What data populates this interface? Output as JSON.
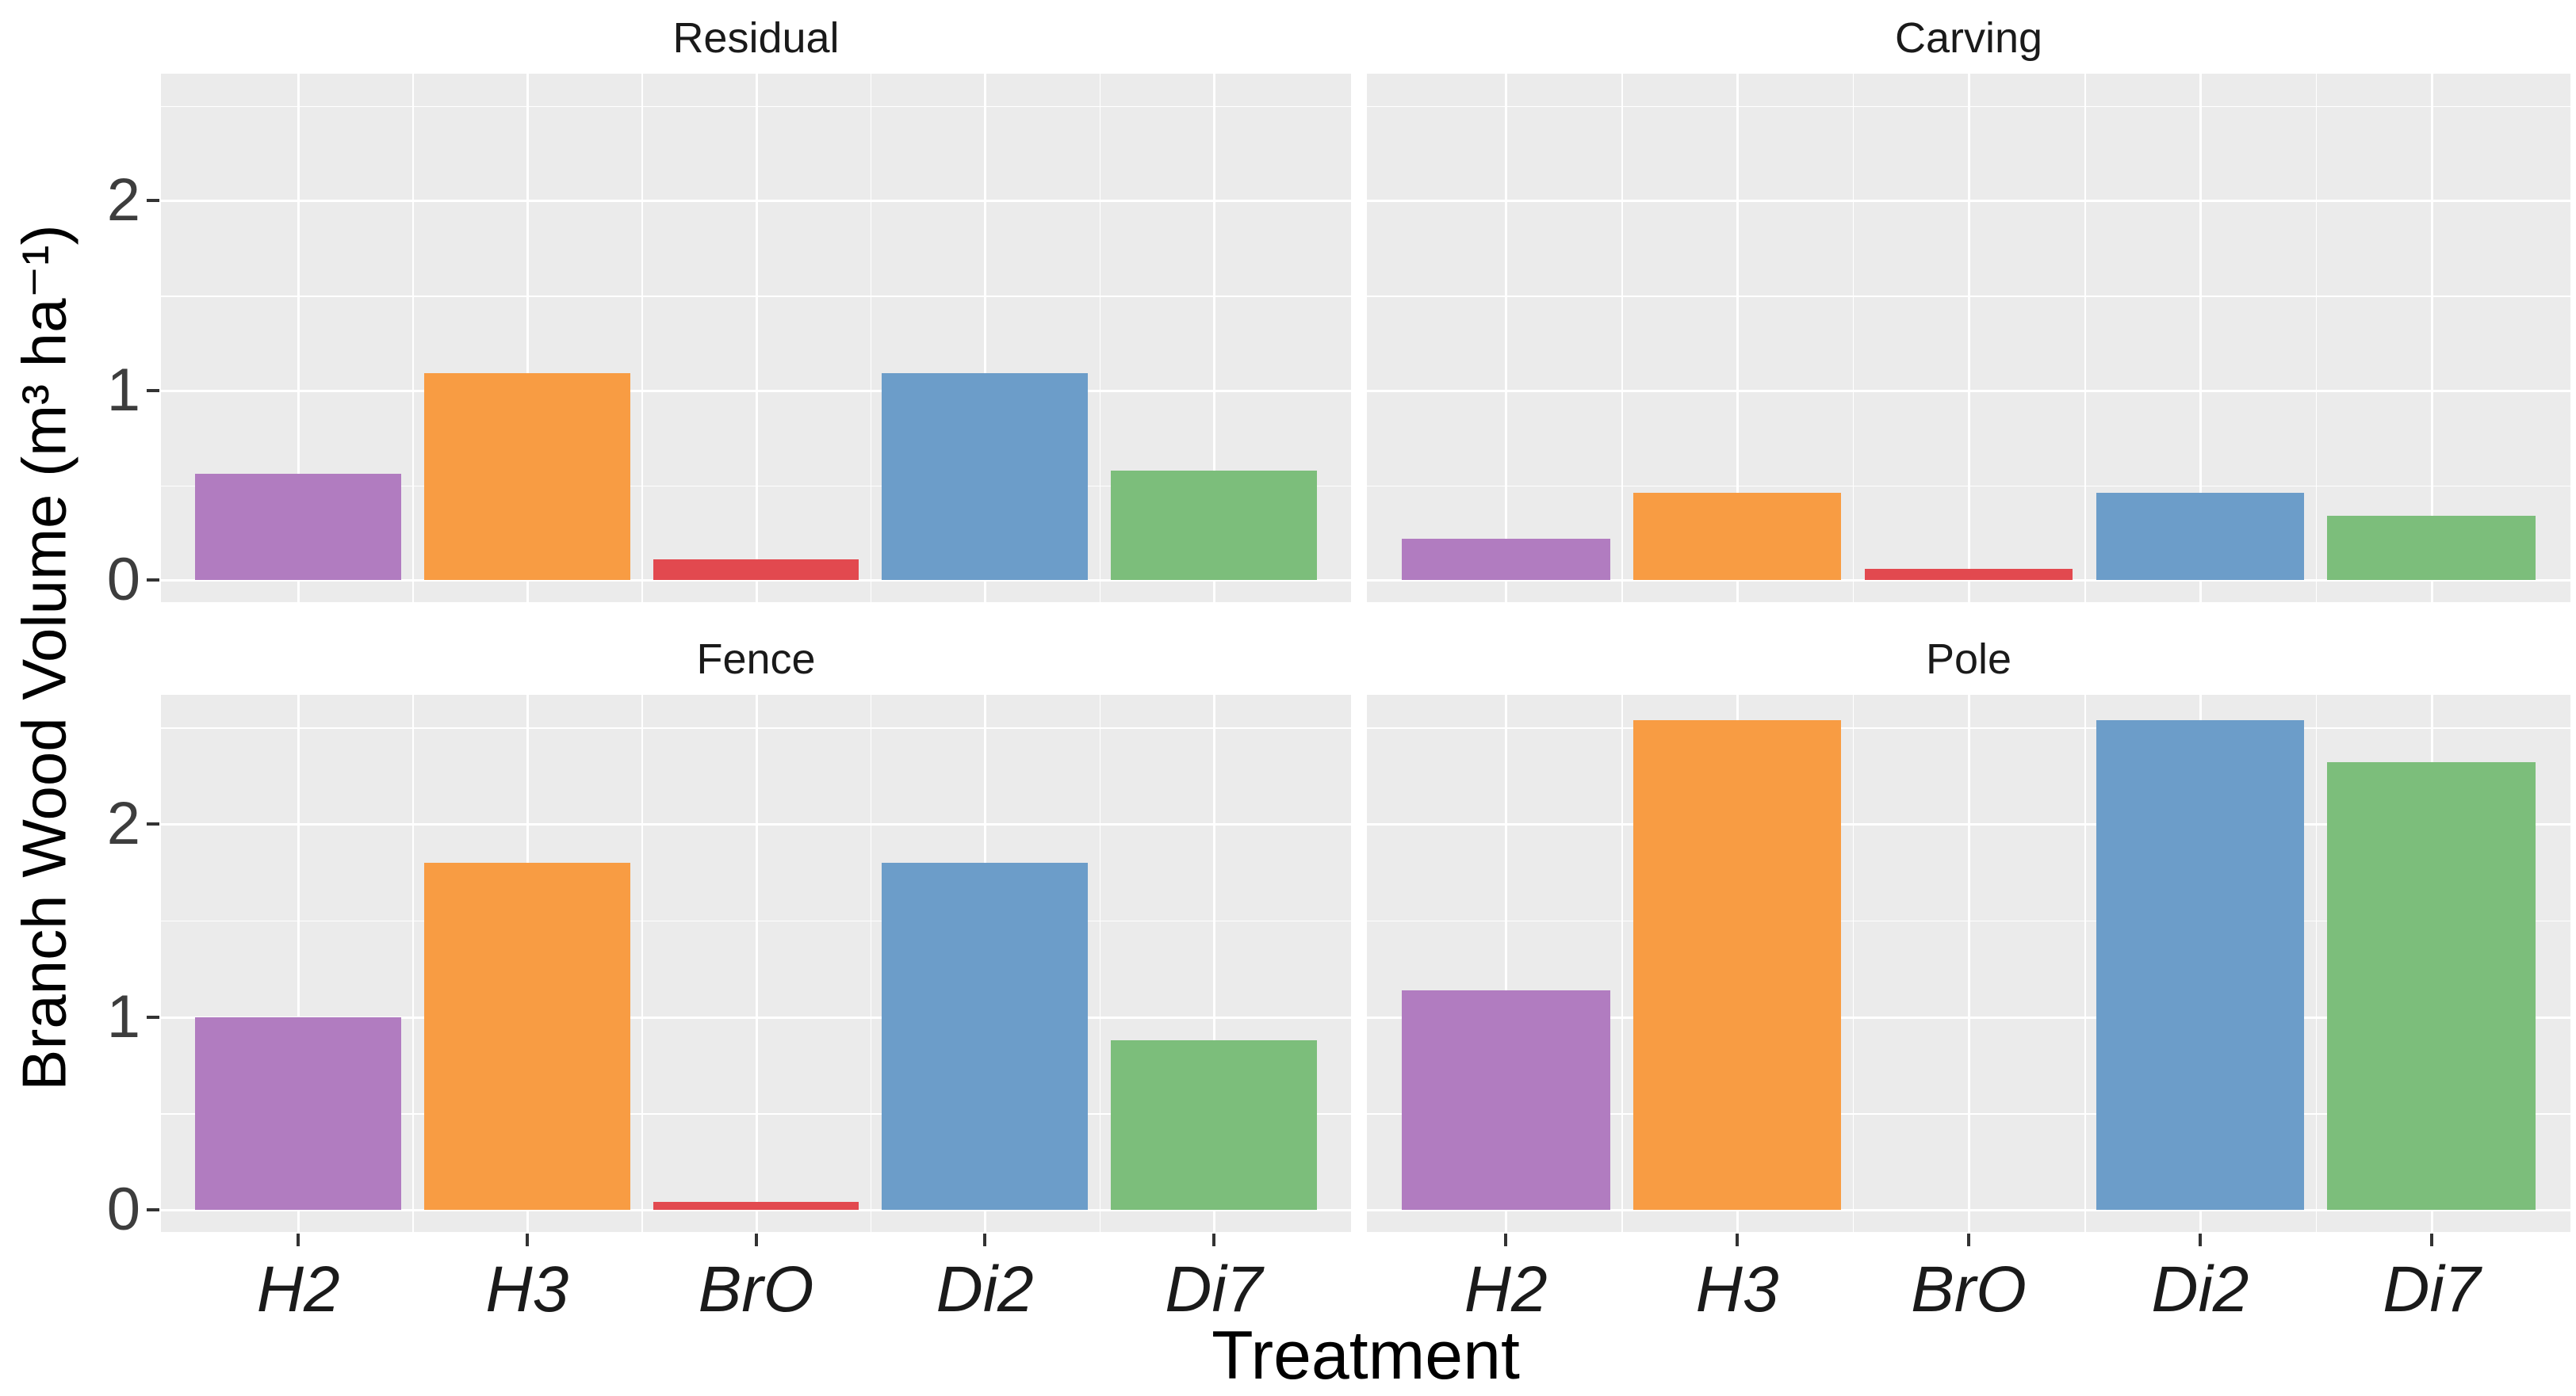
{
  "figure": {
    "y_axis_title": "Branch Wood Volume (m³ ha⁻¹)",
    "x_axis_title": "Treatment",
    "panel_background": "#EBEBEB",
    "gridline_color": "#FFFFFF",
    "text_color": "#1a1a1a"
  },
  "chart_data": {
    "type": "bar",
    "title": "",
    "xlabel": "Treatment",
    "ylabel": "Branch Wood Volume (m³ ha⁻¹)",
    "categories": [
      "H2",
      "H3",
      "BrO",
      "Di2",
      "Di7"
    ],
    "bar_colors": [
      "#B17CC0",
      "#F89C43",
      "#E2494F",
      "#6C9DC9",
      "#7CBE7B"
    ],
    "facets": [
      {
        "label": "Residual",
        "values": [
          0.56,
          1.09,
          0.11,
          1.09,
          0.58
        ]
      },
      {
        "label": "Carving",
        "values": [
          0.22,
          0.46,
          0.06,
          0.46,
          0.34
        ]
      },
      {
        "label": "Fence",
        "values": [
          1.0,
          1.8,
          0.04,
          1.8,
          0.88
        ]
      },
      {
        "label": "Pole",
        "values": [
          1.14,
          2.54,
          0.0,
          2.54,
          2.32
        ]
      }
    ],
    "y_major_ticks": [
      0,
      1,
      2
    ],
    "y_minor_ticks": [
      0.5,
      1.5,
      2.5
    ],
    "ylim": [
      -0.115,
      2.67
    ],
    "grid": "on",
    "legend": "none",
    "facet_layout": "2x2",
    "x_tick_style": "italic"
  }
}
